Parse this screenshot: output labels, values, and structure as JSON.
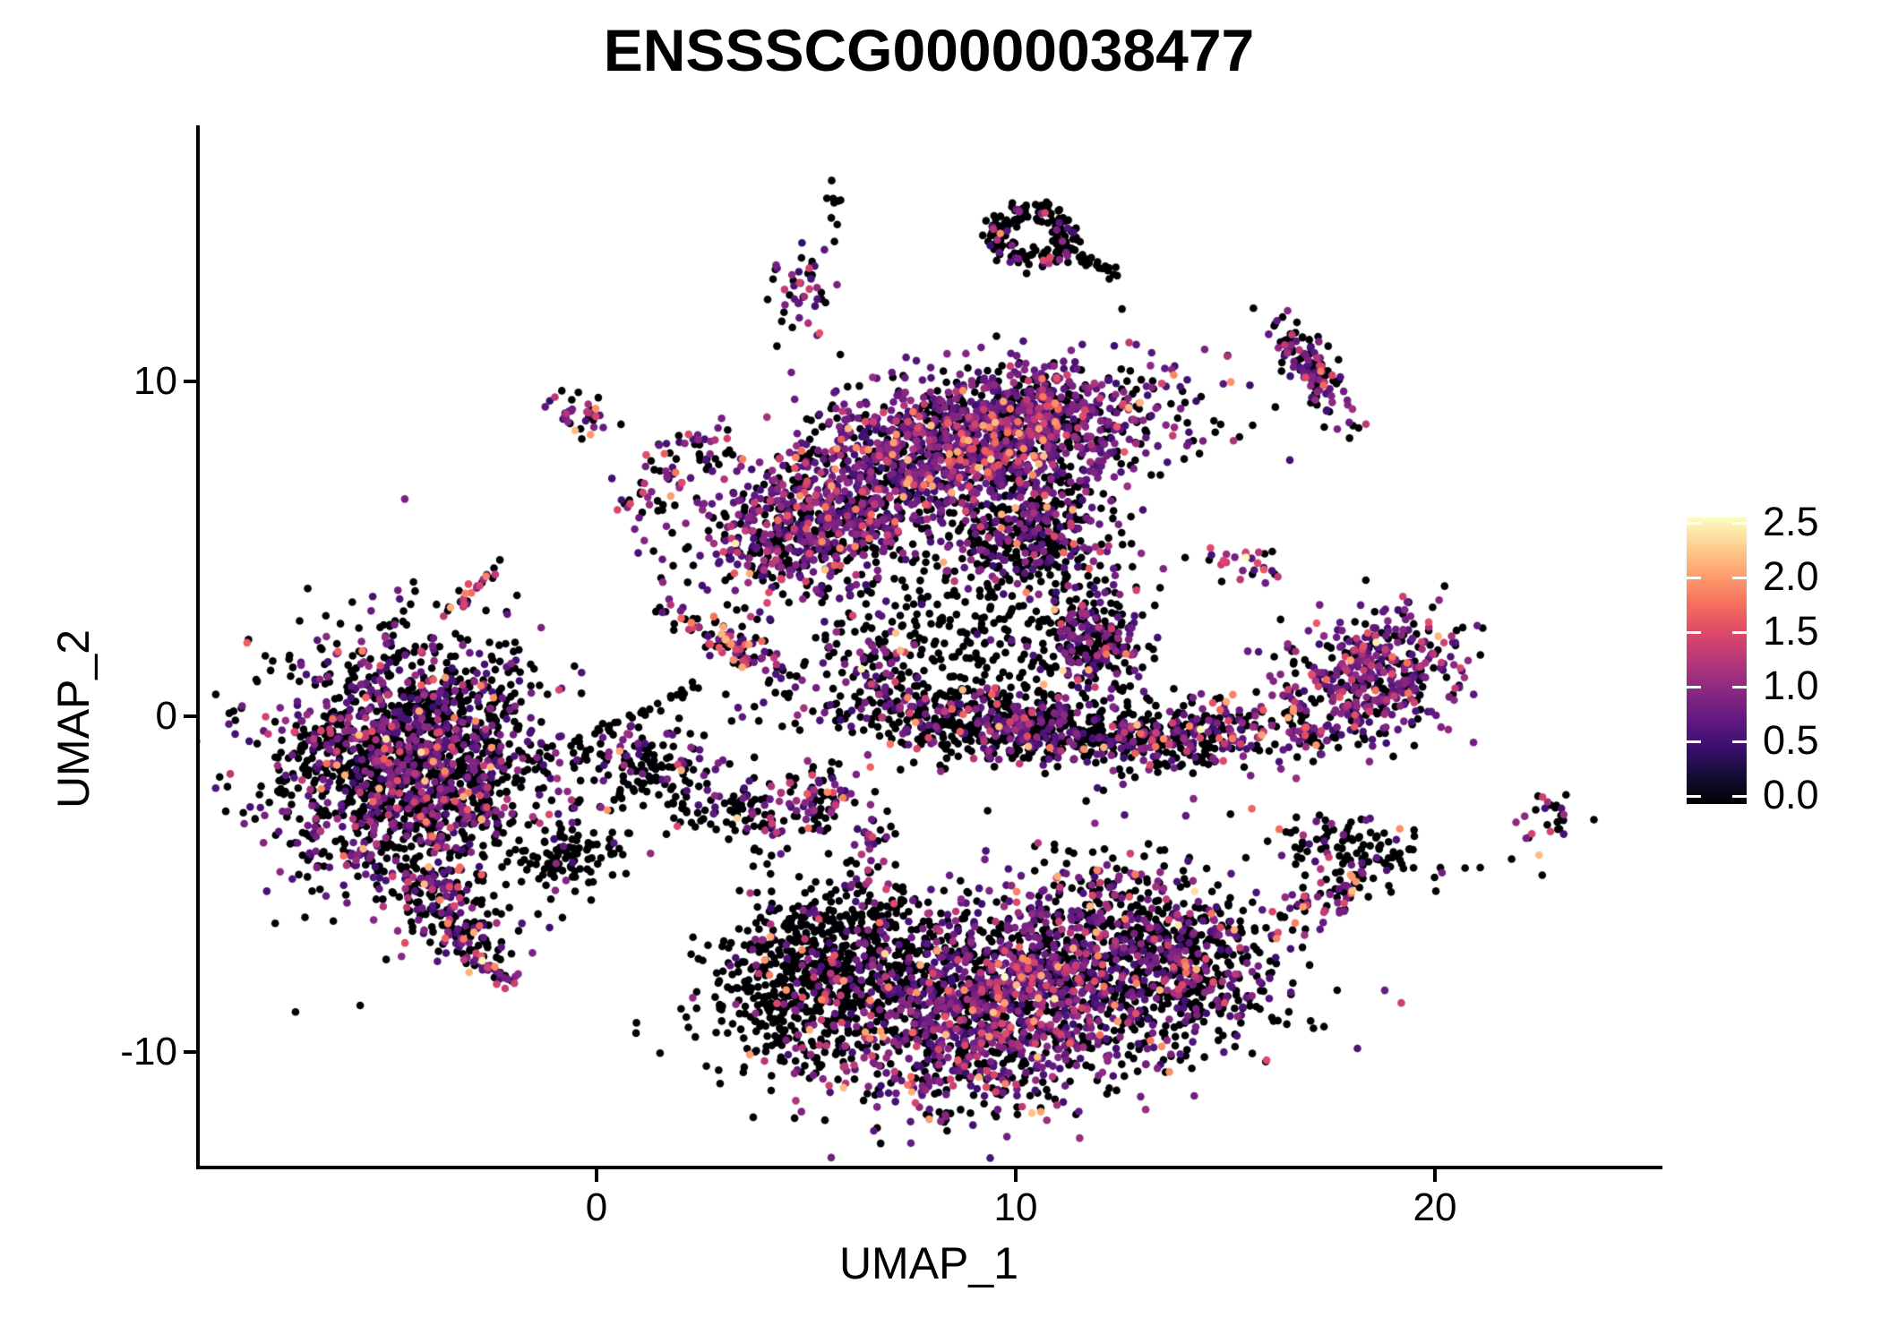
{
  "title": "ENSSSCG00000038477",
  "axes": {
    "x": {
      "label": "UMAP_1",
      "ticks": [
        "0",
        "10",
        "20"
      ],
      "tick_values": [
        0,
        10,
        20
      ],
      "range": [
        -9.5,
        25.4
      ]
    },
    "y": {
      "label": "UMAP_2",
      "ticks": [
        "10",
        "0",
        "-10"
      ],
      "tick_values": [
        10,
        0,
        -10
      ],
      "range": [
        -13.4,
        17.6
      ]
    }
  },
  "legend": {
    "tick_labels": [
      "2.5",
      "2.0",
      "1.5",
      "1.0",
      "0.5",
      "0.0"
    ],
    "tick_values": [
      2.5,
      2.0,
      1.5,
      1.0,
      0.5,
      0.0
    ],
    "vmin": 0.0,
    "vmax": 2.58
  },
  "colors": {
    "background": "#ffffff",
    "axis": "#000000",
    "text": "#000000",
    "colormap_name": "magma",
    "magma_anchors": [
      [
        0.0,
        "#000004"
      ],
      [
        0.1,
        "#140e36"
      ],
      [
        0.2,
        "#3b0f70"
      ],
      [
        0.3,
        "#641a80"
      ],
      [
        0.4,
        "#8c2981"
      ],
      [
        0.5,
        "#b73779"
      ],
      [
        0.6,
        "#de4968"
      ],
      [
        0.7,
        "#f7705c"
      ],
      [
        0.8,
        "#fe9f6d"
      ],
      [
        0.9,
        "#fecf92"
      ],
      [
        1.0,
        "#fcfdbf"
      ]
    ]
  },
  "chart_data": {
    "type": "scatter",
    "title": "ENSSSCG00000038477",
    "xlabel": "UMAP_1",
    "ylabel": "UMAP_2",
    "xlim": [
      -9.5,
      25.4
    ],
    "ylim": [
      -13.4,
      17.6
    ],
    "grid": false,
    "legend_position": "right",
    "point_radius_px": 4.3,
    "value_meaning": "gene expression level, 0.0 (black) to 2.5 (light yellow), magma colormap",
    "value_ranges": {
      "black": [
        0.0,
        0.0
      ],
      "purple": [
        0.5,
        1.05
      ],
      "magenta": [
        1.08,
        1.58
      ],
      "hot": [
        1.6,
        2.25
      ]
    },
    "mix_profiles": {
      "black": [
        0.97,
        0.03,
        0.0,
        0.0
      ],
      "black2": [
        0.88,
        0.09,
        0.02,
        0.01
      ],
      "dark": [
        0.78,
        0.17,
        0.04,
        0.01
      ],
      "dark2": [
        0.62,
        0.3,
        0.06,
        0.02
      ],
      "mix": [
        0.5,
        0.4,
        0.08,
        0.02
      ],
      "purple": [
        0.34,
        0.5,
        0.12,
        0.04
      ],
      "purple2": [
        0.42,
        0.44,
        0.11,
        0.03
      ],
      "mixhot": [
        0.48,
        0.3,
        0.14,
        0.08
      ],
      "hotline": [
        0.34,
        0.3,
        0.26,
        0.1
      ]
    },
    "clusters": [
      {
        "name": "top-specks",
        "cx": 5.65,
        "cy": 15.4,
        "sx": 0.12,
        "sy": 0.5,
        "rot": 0,
        "n": 9,
        "mix": "dark"
      },
      {
        "name": "top-ring",
        "cx": 10.4,
        "cy": 14.35,
        "sx": 1.05,
        "sy": 0.92,
        "rot": 0,
        "n": 185,
        "mix": "dark",
        "shape": "ring"
      },
      {
        "name": "top-ring-tail",
        "cx": 11.85,
        "cy": 13.55,
        "sx": 0.6,
        "sy": 0.12,
        "rot": 28,
        "n": 24,
        "mix": "black"
      },
      {
        "name": "upper-small",
        "cx": 4.93,
        "cy": 12.6,
        "sx": 0.42,
        "sy": 0.6,
        "rot": 0,
        "n": 45,
        "mix": "mix"
      },
      {
        "name": "topright-diagonal",
        "cx": 17.05,
        "cy": 10.25,
        "sx": 0.8,
        "sy": 0.3,
        "rot": 54,
        "n": 140,
        "mix": "mix"
      },
      {
        "name": "near-ten",
        "cx": -0.3,
        "cy": 8.95,
        "sx": 0.48,
        "sy": 0.33,
        "rot": 18,
        "n": 36,
        "mix": "hotline"
      },
      {
        "name": "dumbbell-upper",
        "cx": 2.35,
        "cy": 7.9,
        "sx": 0.5,
        "sy": 0.3,
        "rot": 12,
        "n": 28,
        "mix": "mix"
      },
      {
        "name": "dumbbell-chain",
        "cx": 1.7,
        "cy": 7.2,
        "sx": 0.55,
        "sy": 0.13,
        "rot": 40,
        "n": 18,
        "mix": "hotline"
      },
      {
        "name": "dumbbell-lower",
        "cx": 1.05,
        "cy": 6.55,
        "sx": 0.33,
        "sy": 0.3,
        "rot": 0,
        "n": 18,
        "mix": "hotline"
      },
      {
        "name": "topcenter-main",
        "cx": 9.2,
        "cy": 8.4,
        "sx": 2.2,
        "sy": 0.95,
        "rot": -7,
        "n": 1500,
        "mix": "purple"
      },
      {
        "name": "topcenter-left",
        "cx": 5.4,
        "cy": 5.7,
        "sx": 1.55,
        "sy": 0.95,
        "rot": -10,
        "n": 760,
        "mix": "purple2"
      },
      {
        "name": "topcenter-right",
        "cx": 10.3,
        "cy": 5.5,
        "sx": 1.0,
        "sy": 0.9,
        "rot": 0,
        "n": 430,
        "mix": "dark2"
      },
      {
        "name": "below-scatter",
        "cx": 7.7,
        "cy": 2.4,
        "sx": 1.6,
        "sy": 1.5,
        "rot": 0,
        "n": 175,
        "mix": "black2"
      },
      {
        "name": "left-diagonal-magenta",
        "cx": 3.3,
        "cy": 2.1,
        "sx": 1.0,
        "sy": 0.28,
        "rot": 28,
        "n": 100,
        "mix": "mixhot"
      },
      {
        "name": "small-streak",
        "cx": -3.05,
        "cy": 3.7,
        "sx": 0.42,
        "sy": 0.12,
        "rot": -46,
        "n": 24,
        "mix": "hotline"
      },
      {
        "name": "center-small",
        "cx": 6.7,
        "cy": 1.6,
        "sx": 0.55,
        "sy": 0.62,
        "rot": 0,
        "n": 70,
        "mix": "mix"
      },
      {
        "name": "band-left",
        "cx": 10.0,
        "cy": -0.35,
        "sx": 2.3,
        "sy": 0.55,
        "rot": 5,
        "n": 700,
        "mix": "dark2"
      },
      {
        "name": "band-right",
        "cx": 14.3,
        "cy": -0.5,
        "sx": 1.15,
        "sy": 0.55,
        "rot": -8,
        "n": 230,
        "mix": "dark2"
      },
      {
        "name": "band-upper-scatter",
        "cx": 9.5,
        "cy": 1.9,
        "sx": 1.0,
        "sy": 1.0,
        "rot": 0,
        "n": 90,
        "mix": "black"
      },
      {
        "name": "midright-blob",
        "cx": 11.9,
        "cy": 2.2,
        "sx": 0.62,
        "sy": 0.78,
        "rot": 0,
        "n": 270,
        "mix": "dark2"
      },
      {
        "name": "right-loose",
        "cx": 15.3,
        "cy": 4.5,
        "sx": 0.75,
        "sy": 0.33,
        "rot": 10,
        "n": 28,
        "mix": "hotline"
      },
      {
        "name": "right-fish",
        "cx": 18.45,
        "cy": 1.15,
        "sx": 1.05,
        "sy": 0.95,
        "rot": -14,
        "n": 450,
        "mix": "purple"
      },
      {
        "name": "fish-tail",
        "cx": 16.95,
        "cy": -0.55,
        "sx": 0.45,
        "sy": 0.18,
        "rot": 62,
        "n": 42,
        "mix": "mixhot"
      },
      {
        "name": "left-main",
        "cx": -4.4,
        "cy": -1.4,
        "sx": 1.6,
        "sy": 1.85,
        "rot": 8,
        "n": 1800,
        "mix": "dark2"
      },
      {
        "name": "left-tail",
        "cx": -3.55,
        "cy": -5.8,
        "sx": 0.95,
        "sy": 0.5,
        "rot": 40,
        "n": 170,
        "mix": "dark2"
      },
      {
        "name": "left-tail-tip",
        "cx": -2.55,
        "cy": -7.5,
        "sx": 0.5,
        "sy": 0.15,
        "rot": 34,
        "n": 36,
        "mix": "hotline"
      },
      {
        "name": "left-ext1",
        "cx": 1.1,
        "cy": -1.5,
        "sx": 0.9,
        "sy": 0.6,
        "rot": 8,
        "n": 150,
        "mix": "dark"
      },
      {
        "name": "left-ext2",
        "cx": 3.5,
        "cy": -2.9,
        "sx": 0.85,
        "sy": 0.55,
        "rot": 10,
        "n": 95,
        "mix": "dark"
      },
      {
        "name": "left-ext3",
        "cx": 5.2,
        "cy": -2.4,
        "sx": 0.55,
        "sy": 0.5,
        "rot": 0,
        "n": 75,
        "mix": "mixhot"
      },
      {
        "name": "ne-trail",
        "cx": 1.2,
        "cy": 0.2,
        "sx": 0.95,
        "sy": 0.08,
        "rot": -24,
        "n": 30,
        "mix": "black"
      },
      {
        "name": "tiny-left",
        "cx": -6.55,
        "cy": -4.3,
        "sx": 0.28,
        "sy": 0.25,
        "rot": 0,
        "n": 11,
        "mix": "dark"
      },
      {
        "name": "triangle",
        "cx": -0.6,
        "cy": -4.2,
        "sx": 0.7,
        "sy": 0.5,
        "rot": -8,
        "n": 90,
        "mix": "black"
      },
      {
        "name": "vertical-connector",
        "cx": 6.55,
        "cy": -3.9,
        "sx": 0.22,
        "sy": 0.85,
        "rot": 6,
        "n": 30,
        "mix": "hotline"
      },
      {
        "name": "bottom-left-lobe",
        "cx": 5.3,
        "cy": -7.6,
        "sx": 1.35,
        "sy": 1.2,
        "rot": -22,
        "n": 750,
        "mix": "black2"
      },
      {
        "name": "bottom-mid",
        "cx": 9.4,
        "cy": -8.6,
        "sx": 1.95,
        "sy": 1.6,
        "rot": -10,
        "n": 1550,
        "mix": "purple2"
      },
      {
        "name": "bottom-right",
        "cx": 13.1,
        "cy": -7.2,
        "sx": 1.6,
        "sy": 1.25,
        "rot": 16,
        "n": 820,
        "mix": "dark2"
      },
      {
        "name": "hook-upper",
        "cx": 18.2,
        "cy": -3.9,
        "sx": 1.1,
        "sy": 0.4,
        "rot": 10,
        "n": 95,
        "mix": "dark"
      },
      {
        "name": "hook-tip",
        "cx": 17.5,
        "cy": -5.3,
        "sx": 0.75,
        "sy": 0.42,
        "rot": -35,
        "n": 85,
        "mix": "mixhot"
      },
      {
        "name": "bottomright-small",
        "cx": 14.15,
        "cy": -7.8,
        "sx": 0.3,
        "sy": 0.95,
        "rot": 6,
        "n": 58,
        "mix": "dark2"
      },
      {
        "name": "far-right",
        "cx": 22.65,
        "cy": -3.1,
        "sx": 0.5,
        "sy": 0.48,
        "rot": -18,
        "n": 28,
        "mix": "mixhot"
      }
    ]
  }
}
